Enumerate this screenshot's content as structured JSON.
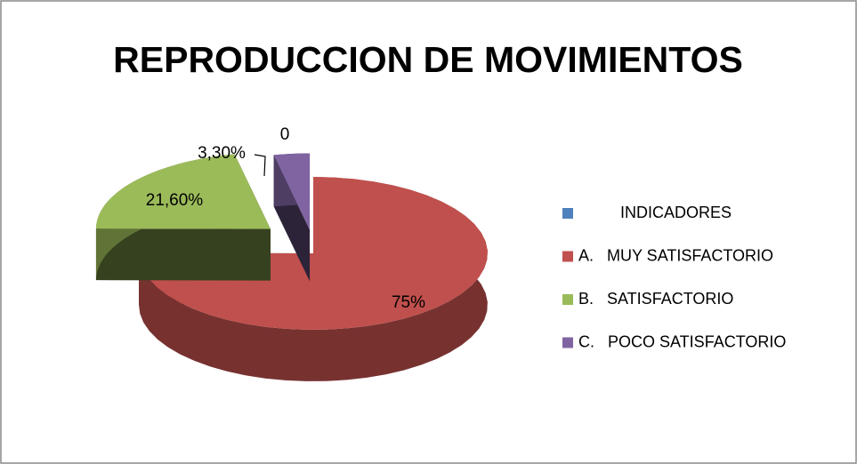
{
  "chart_data": {
    "type": "pie",
    "title": "REPRODUCCION DE MOVIMIENTOS",
    "categories": [
      "INDICADORES",
      "A.   MUY SATISFACTORIO",
      "B.   SATISFACTORIO",
      "C.   POCO SATISFACTORIO"
    ],
    "values": [
      0,
      75,
      21.6,
      3.3
    ],
    "value_labels": [
      "0",
      "75%",
      "21,60%",
      "3,30%"
    ],
    "colors": [
      "#4f81bd",
      "#c0504d",
      "#9bbb59",
      "#8064a2"
    ],
    "legend": "right"
  }
}
